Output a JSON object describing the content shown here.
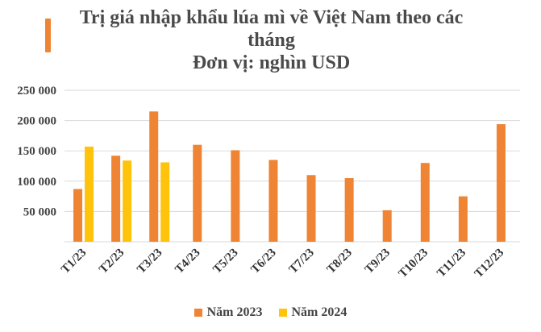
{
  "title_lines": [
    "Trị giá nhập khẩu lúa mì về Việt Nam theo các",
    "tháng",
    "Đơn vị: nghìn USD"
  ],
  "colors": {
    "accent": "#ee8434",
    "series_2023": "#ee8434",
    "series_2024": "#fec30a",
    "grid": "#d9d9d9"
  },
  "chart_data": {
    "type": "bar",
    "title": "Trị giá nhập khẩu lúa mì về Việt Nam theo các tháng",
    "subtitle": "Đơn vị: nghìn USD",
    "xlabel": "",
    "ylabel": "",
    "categories": [
      "T1/23",
      "T2/23",
      "T3/23",
      "T4/23",
      "T5/23",
      "T6/23",
      "T7/23",
      "T8/23",
      "T9/23",
      "T10/23",
      "T11/23",
      "T12/23"
    ],
    "series": [
      {
        "name": "Năm 2023",
        "color": "#ee8434",
        "values": [
          87000,
          142000,
          215000,
          160000,
          151000,
          135000,
          110000,
          105000,
          52000,
          130000,
          75000,
          194000
        ]
      },
      {
        "name": "Năm 2024",
        "color": "#fec30a",
        "values": [
          157000,
          134000,
          131000,
          null,
          null,
          null,
          null,
          null,
          null,
          null,
          null,
          null
        ]
      }
    ],
    "ylim": [
      0,
      250000
    ],
    "yticks": [
      50000,
      100000,
      150000,
      200000,
      250000
    ],
    "ytick_labels": [
      "50 000",
      "100 000",
      "150 000",
      "200 000",
      "250 000"
    ],
    "grid": true,
    "legend_position": "bottom"
  }
}
